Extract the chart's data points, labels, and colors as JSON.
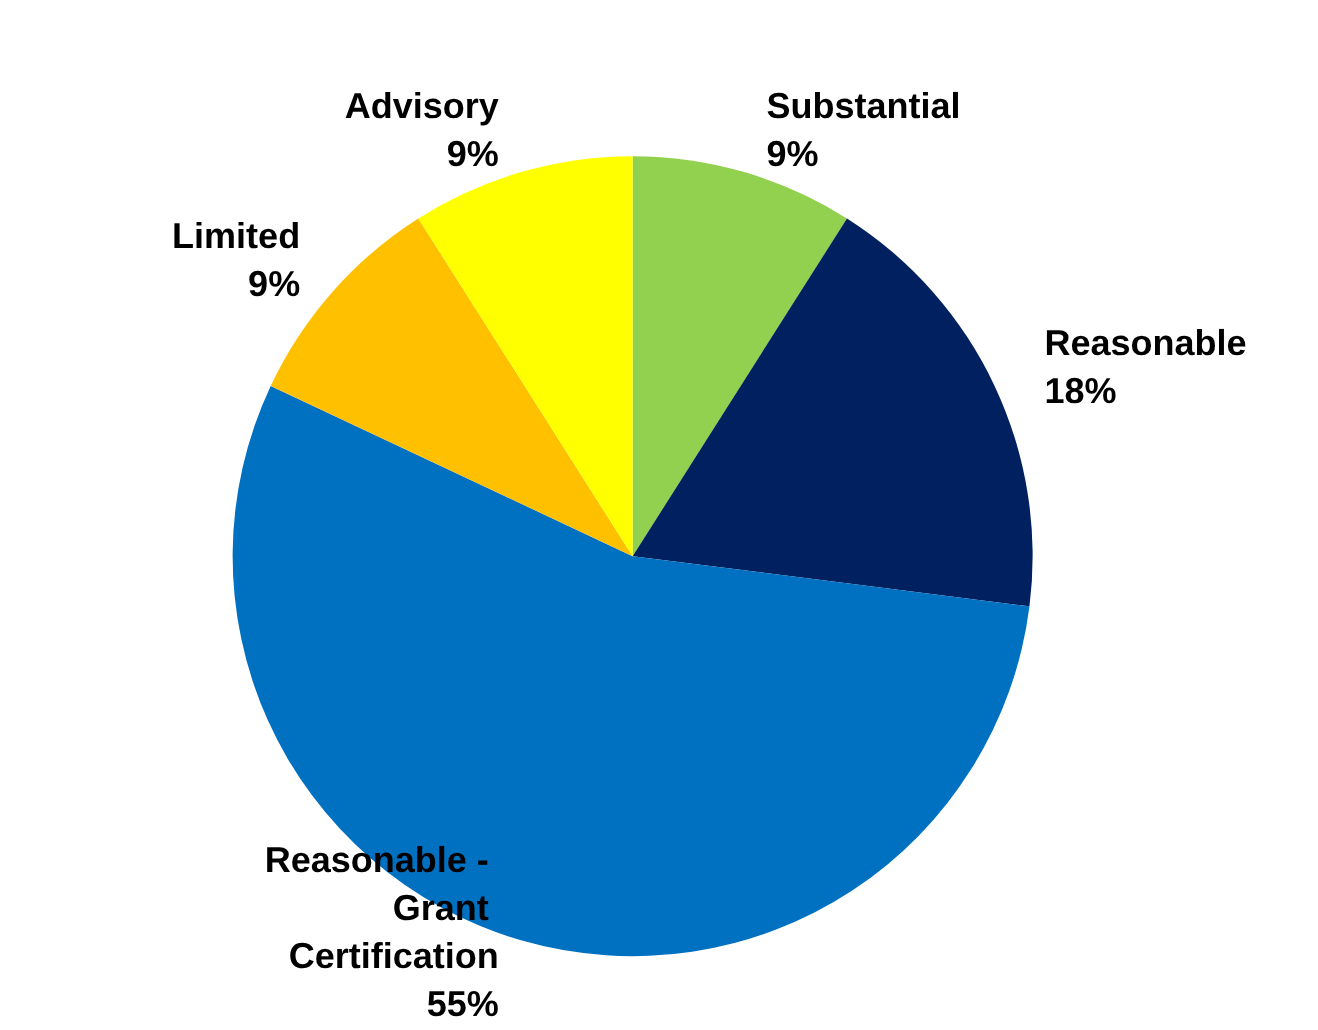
{
  "chart_data": {
    "type": "pie",
    "categories": [
      "Substantial",
      "Reasonable",
      "Reasonable - Grant Certification",
      "Limited",
      "Advisory"
    ],
    "values": [
      9,
      18,
      55,
      9,
      9
    ],
    "colors": [
      "#92d050",
      "#002060",
      "#0070c0",
      "#ffc000",
      "#ffff00"
    ],
    "value_labels": [
      "9%",
      "18%",
      "55%",
      "9%",
      "9%"
    ],
    "legend": false
  }
}
